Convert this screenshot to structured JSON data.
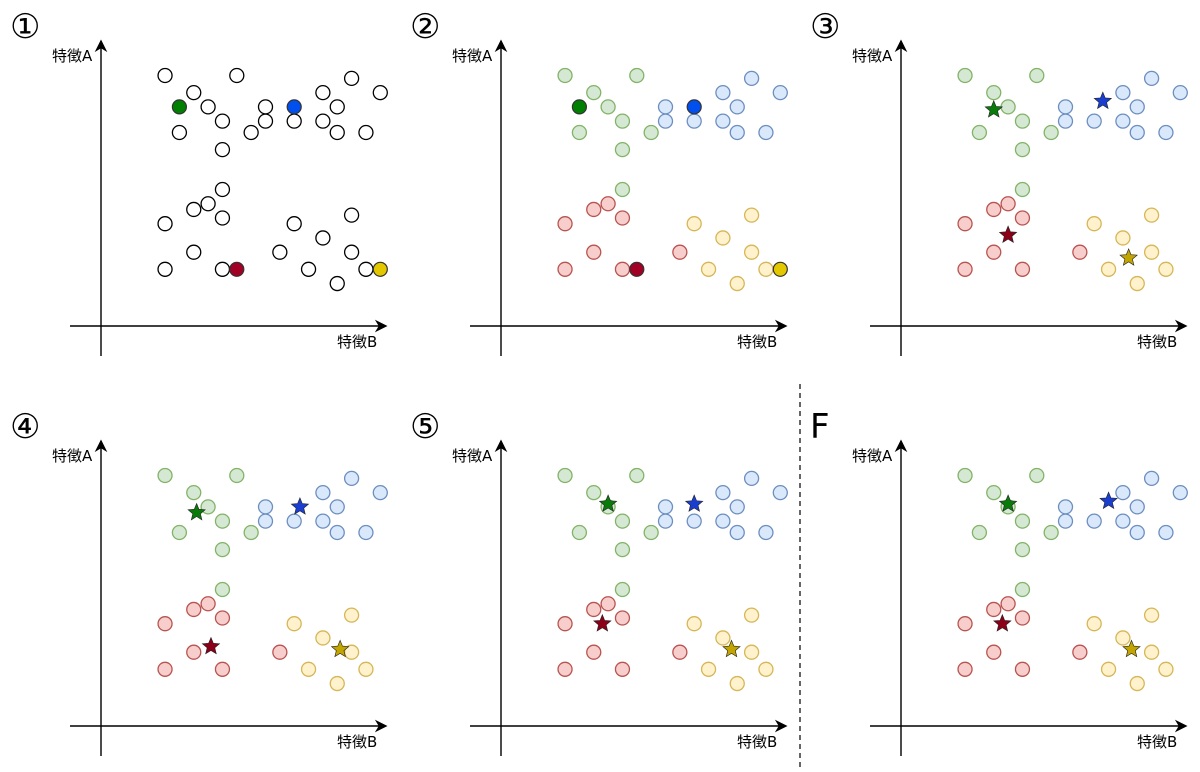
{
  "axis_labels": {
    "x": "特徴B",
    "y": "特徴A"
  },
  "cluster_styles": {
    "none": {
      "fill": "#ffffff",
      "stroke": "#000000"
    },
    "green": {
      "fill": "#d5e8d4",
      "stroke": "#82b366",
      "solid": "#008000",
      "star": "#0a7a0a"
    },
    "blue": {
      "fill": "#dae8fc",
      "stroke": "#6c8ebf",
      "solid": "#0050ef",
      "star": "#1a3fd0"
    },
    "red": {
      "fill": "#f8cecc",
      "stroke": "#b85450",
      "solid": "#a20025",
      "star": "#8b0018"
    },
    "yellow": {
      "fill": "#fff2cc",
      "stroke": "#d6b656",
      "solid": "#e3c800",
      "star": "#c2a500"
    }
  },
  "base_points": [
    {
      "x": 1.5,
      "y": 9.0,
      "c": "green"
    },
    {
      "x": 2.5,
      "y": 8.4,
      "c": "green"
    },
    {
      "x": 3.5,
      "y": 7.4,
      "c": "green"
    },
    {
      "x": 4.0,
      "y": 9.0,
      "c": "green"
    },
    {
      "x": 3.0,
      "y": 7.9,
      "c": "green"
    },
    {
      "x": 5.0,
      "y": 7.9,
      "c": "blue"
    },
    {
      "x": 5.0,
      "y": 7.4,
      "c": "blue"
    },
    {
      "x": 6.0,
      "y": 7.4,
      "c": "blue"
    },
    {
      "x": 7.0,
      "y": 7.4,
      "c": "blue"
    },
    {
      "x": 7.5,
      "y": 7.9,
      "c": "blue"
    },
    {
      "x": 7.5,
      "y": 7.0,
      "c": "blue"
    },
    {
      "x": 7.0,
      "y": 8.4,
      "c": "blue"
    },
    {
      "x": 8.0,
      "y": 8.9,
      "c": "blue"
    },
    {
      "x": 8.5,
      "y": 7.0,
      "c": "blue"
    },
    {
      "x": 9.0,
      "y": 8.4,
      "c": "blue"
    },
    {
      "x": 3.5,
      "y": 6.4,
      "c": "green"
    },
    {
      "x": 2.0,
      "y": 7.0,
      "c": "green"
    },
    {
      "x": 3.5,
      "y": 5.0,
      "c": "green"
    },
    {
      "x": 4.5,
      "y": 7.0,
      "c": "green"
    },
    {
      "x": 2.5,
      "y": 4.3,
      "c": "red"
    },
    {
      "x": 3.5,
      "y": 4.0,
      "c": "red"
    },
    {
      "x": 1.5,
      "y": 3.8,
      "c": "red"
    },
    {
      "x": 2.5,
      "y": 2.8,
      "c": "red"
    },
    {
      "x": 1.5,
      "y": 2.2,
      "c": "red"
    },
    {
      "x": 3.5,
      "y": 2.2,
      "c": "red"
    },
    {
      "x": 3.0,
      "y": 4.5,
      "c": "red"
    },
    {
      "x": 6.0,
      "y": 3.8,
      "c": "yellow"
    },
    {
      "x": 8.0,
      "y": 4.1,
      "c": "yellow"
    },
    {
      "x": 7.0,
      "y": 3.3,
      "c": "yellow"
    },
    {
      "x": 5.5,
      "y": 2.8,
      "c": "red"
    },
    {
      "x": 8.0,
      "y": 2.8,
      "c": "yellow"
    },
    {
      "x": 6.5,
      "y": 2.2,
      "c": "yellow"
    },
    {
      "x": 7.5,
      "y": 1.7,
      "c": "yellow"
    },
    {
      "x": 8.5,
      "y": 2.2,
      "c": "yellow"
    }
  ],
  "panels": [
    {
      "label": "①",
      "mode": "initial",
      "seeds": [
        {
          "x": 2.0,
          "y": 7.9,
          "c": "green"
        },
        {
          "x": 6.0,
          "y": 7.9,
          "c": "blue"
        },
        {
          "x": 4.0,
          "y": 2.2,
          "c": "red"
        },
        {
          "x": 9.0,
          "y": 2.2,
          "c": "yellow"
        }
      ]
    },
    {
      "label": "②",
      "mode": "assigned",
      "seeds": [
        {
          "x": 2.0,
          "y": 7.9,
          "c": "green"
        },
        {
          "x": 6.0,
          "y": 7.9,
          "c": "blue"
        },
        {
          "x": 4.0,
          "y": 2.2,
          "c": "red"
        },
        {
          "x": 9.0,
          "y": 2.2,
          "c": "yellow"
        }
      ]
    },
    {
      "label": "③",
      "mode": "centroids",
      "centroids": [
        {
          "x": 2.5,
          "y": 7.8,
          "c": "green"
        },
        {
          "x": 6.3,
          "y": 8.1,
          "c": "blue"
        },
        {
          "x": 3.0,
          "y": 3.4,
          "c": "red"
        },
        {
          "x": 7.2,
          "y": 2.6,
          "c": "yellow"
        }
      ]
    },
    {
      "label": "④",
      "mode": "centroids",
      "centroids": [
        {
          "x": 2.6,
          "y": 7.7,
          "c": "green"
        },
        {
          "x": 6.2,
          "y": 7.9,
          "c": "blue"
        },
        {
          "x": 3.1,
          "y": 3.0,
          "c": "red"
        },
        {
          "x": 7.6,
          "y": 2.9,
          "c": "yellow"
        }
      ]
    },
    {
      "label": "⑤",
      "mode": "centroids",
      "centroids": [
        {
          "x": 3.0,
          "y": 8.0,
          "c": "green"
        },
        {
          "x": 6.0,
          "y": 8.0,
          "c": "blue"
        },
        {
          "x": 2.8,
          "y": 3.8,
          "c": "red"
        },
        {
          "x": 7.3,
          "y": 2.9,
          "c": "yellow"
        }
      ]
    },
    {
      "label": "F",
      "mode": "centroids",
      "centroids": [
        {
          "x": 3.0,
          "y": 8.0,
          "c": "green"
        },
        {
          "x": 6.5,
          "y": 8.1,
          "c": "blue"
        },
        {
          "x": 2.8,
          "y": 3.8,
          "c": "red"
        },
        {
          "x": 7.3,
          "y": 2.9,
          "c": "yellow"
        }
      ]
    }
  ]
}
